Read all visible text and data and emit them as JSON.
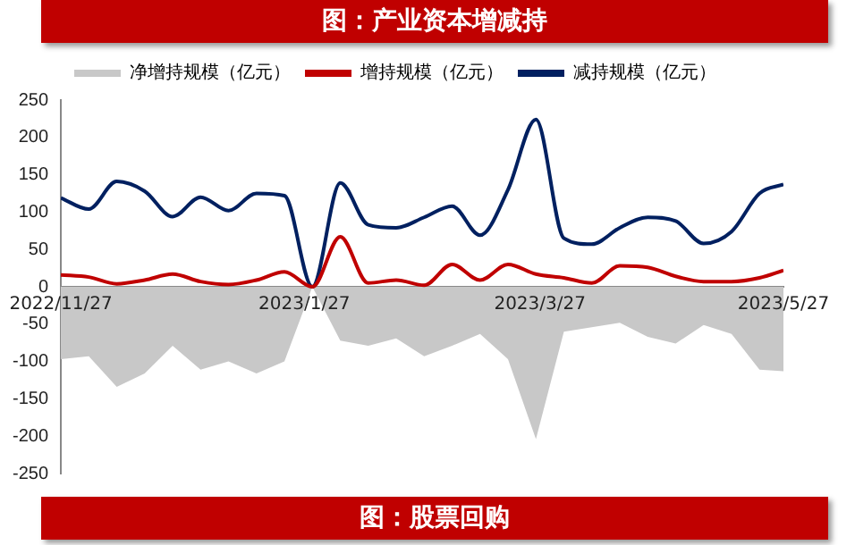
{
  "chart_data": {
    "type": "line",
    "title": "图：产业资本增减持",
    "annotations": [
      "图：股票回购"
    ],
    "x": [
      "2022-11-27",
      "2022-12-04",
      "2022-12-11",
      "2022-12-18",
      "2022-12-25",
      "2023-01-01",
      "2023-01-08",
      "2023-01-15",
      "2023-01-22",
      "2023-01-29",
      "2023-02-05",
      "2023-02-12",
      "2023-02-19",
      "2023-02-26",
      "2023-03-05",
      "2023-03-12",
      "2023-03-19",
      "2023-03-26",
      "2023-04-02",
      "2023-04-09",
      "2023-04-16",
      "2023-04-23",
      "2023-04-30",
      "2023-05-07",
      "2023-05-14",
      "2023-05-21",
      "2023-05-27"
    ],
    "series": [
      {
        "name": "净增持规模（亿元）",
        "type": "area",
        "color": "#c8c8c8",
        "values": [
          -97,
          -93,
          -134,
          -116,
          -79,
          -111,
          -100,
          -116,
          -100,
          0,
          -72,
          -79,
          -69,
          -93,
          -79,
          -63,
          -97,
          -204,
          -60,
          -54,
          -48,
          -67,
          -76,
          -51,
          -63,
          -111,
          -113
        ]
      },
      {
        "name": "增持规模（亿元）",
        "type": "line",
        "color": "#c00000",
        "values": [
          16,
          13,
          4,
          9,
          17,
          7,
          3,
          9,
          20,
          0,
          67,
          5,
          9,
          2,
          30,
          9,
          30,
          17,
          12,
          5,
          28,
          26,
          14,
          7,
          7,
          12,
          22
        ]
      },
      {
        "name": "减持规模（亿元）",
        "type": "line",
        "color": "#002060",
        "values": [
          119,
          104,
          141,
          128,
          94,
          120,
          102,
          125,
          122,
          0,
          139,
          83,
          79,
          93,
          108,
          69,
          130,
          224,
          65,
          57,
          79,
          93,
          88,
          58,
          74,
          125,
          137
        ]
      }
    ],
    "xlim": [
      "2022-11-27",
      "2023-05-27"
    ],
    "xticks": [
      {
        "value": "2022-11-27",
        "label": "2022/11/27"
      },
      {
        "value": "2023-01-27",
        "label": "2023/1/27"
      },
      {
        "value": "2023-03-27",
        "label": "2023/3/27"
      },
      {
        "value": "2023-05-27",
        "label": "2023/5/27"
      }
    ],
    "ylim": [
      -250,
      250
    ],
    "yticks": [
      -250,
      -200,
      -150,
      -100,
      -50,
      0,
      50,
      100,
      150,
      200,
      250
    ],
    "grid": false,
    "legend": "top",
    "marker": "none",
    "line_style": "solid"
  }
}
